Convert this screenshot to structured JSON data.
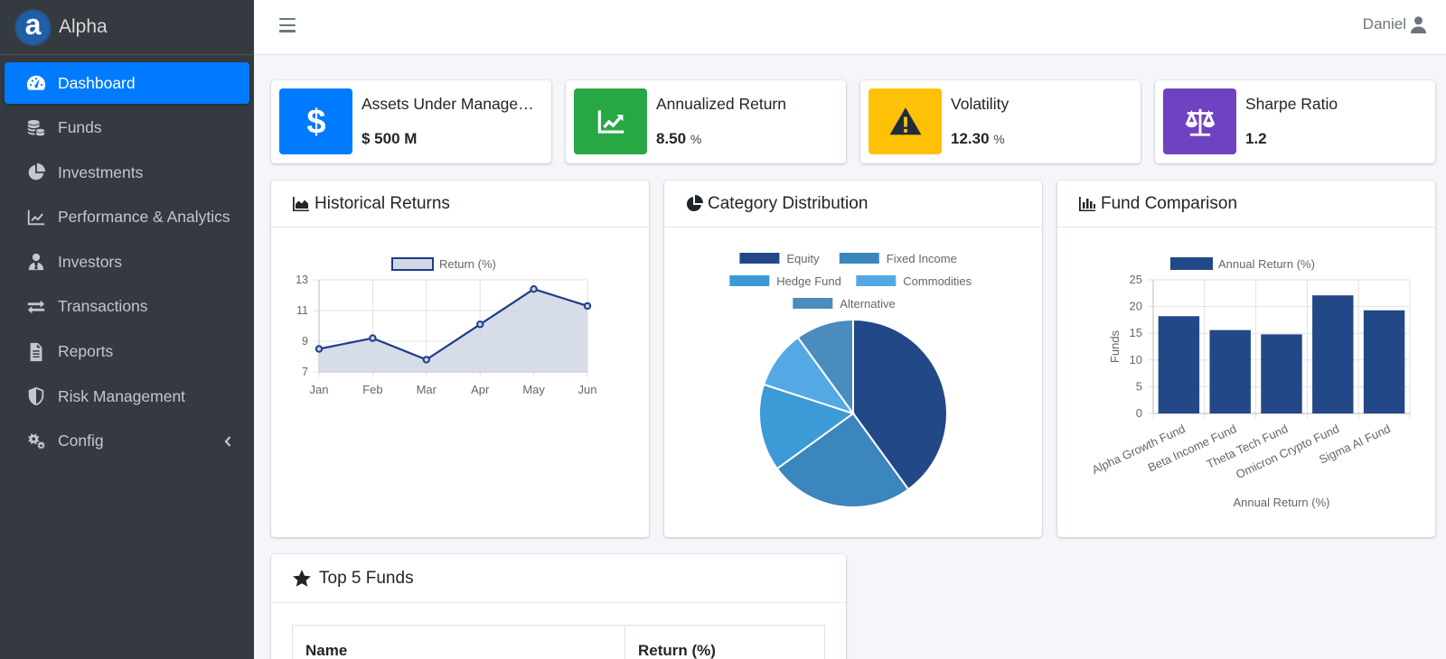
{
  "brand": {
    "logo_letter": "a",
    "name": "Alpha"
  },
  "nav": [
    {
      "label": "Dashboard",
      "icon": "tachometer-icon",
      "active": true
    },
    {
      "label": "Funds",
      "icon": "coins-icon"
    },
    {
      "label": "Investments",
      "icon": "pie-chart-icon"
    },
    {
      "label": "Performance & Analytics",
      "icon": "line-chart-icon"
    },
    {
      "label": "Investors",
      "icon": "user-tie-icon"
    },
    {
      "label": "Transactions",
      "icon": "exchange-icon"
    },
    {
      "label": "Reports",
      "icon": "file-alt-icon"
    },
    {
      "label": "Risk Management",
      "icon": "shield-icon"
    },
    {
      "label": "Config",
      "icon": "cogs-icon",
      "has_submenu": true
    }
  ],
  "topbar": {
    "user_name": "Daniel"
  },
  "info_boxes": [
    {
      "label": "Assets Under Manage…",
      "value": "$ 500 M",
      "unit": "",
      "color": "#007bff",
      "icon": "dollar-icon"
    },
    {
      "label": "Annualized Return",
      "value": "8.50",
      "unit": "%",
      "color": "#28a745",
      "icon": "chart-line-icon"
    },
    {
      "label": "Volatility",
      "value": "12.30",
      "unit": "%",
      "color": "#ffc107",
      "icon": "warning-icon"
    },
    {
      "label": "Sharpe Ratio",
      "value": "1.2",
      "unit": "",
      "color": "#6f42c1",
      "icon": "balance-scale-icon"
    }
  ],
  "cards": {
    "historical": {
      "title": "Historical Returns"
    },
    "category": {
      "title": "Category Distribution"
    },
    "comparison": {
      "title": "Fund Comparison"
    },
    "top5": {
      "title": "Top 5 Funds",
      "columns": [
        "Name",
        "Return (%)"
      ]
    }
  },
  "chart_data": [
    {
      "type": "area",
      "title": "Historical Returns",
      "categories": [
        "Jan",
        "Feb",
        "Mar",
        "Apr",
        "May",
        "Jun"
      ],
      "series": [
        {
          "name": "Return (%)",
          "values": [
            8.5,
            9.2,
            7.8,
            10.1,
            12.4,
            11.3
          ]
        }
      ],
      "ylim": [
        7,
        13
      ],
      "yticks": [
        7,
        9,
        11,
        13
      ],
      "grid": true,
      "legend": "top",
      "colors": {
        "line": "#1f3c88",
        "fill": "#d1d8e6"
      }
    },
    {
      "type": "pie",
      "title": "Category Distribution",
      "categories": [
        "Equity",
        "Fixed Income",
        "Hedge Fund",
        "Commodities",
        "Alternative"
      ],
      "values": [
        40,
        25,
        15,
        10,
        10
      ],
      "colors": [
        "#234888",
        "#3a86bd",
        "#3c9ad6",
        "#54a9e4",
        "#4a8cbd"
      ],
      "legend": "top"
    },
    {
      "type": "bar",
      "title": "Fund Comparison",
      "categories": [
        "Alpha Growth Fund",
        "Beta Income Fund",
        "Theta Tech Fund",
        "Omicron Crypto Fund",
        "Sigma AI Fund"
      ],
      "series": [
        {
          "name": "Annual Return (%)",
          "values": [
            18.2,
            15.6,
            14.8,
            22.1,
            19.3
          ]
        }
      ],
      "xlabel": "Annual Return (%)",
      "ylabel": "Funds",
      "ylim": [
        0,
        25
      ],
      "yticks": [
        0,
        5,
        10,
        15,
        20,
        25
      ],
      "grid": true,
      "legend": "top",
      "colors": {
        "bar": "#234888"
      }
    }
  ]
}
